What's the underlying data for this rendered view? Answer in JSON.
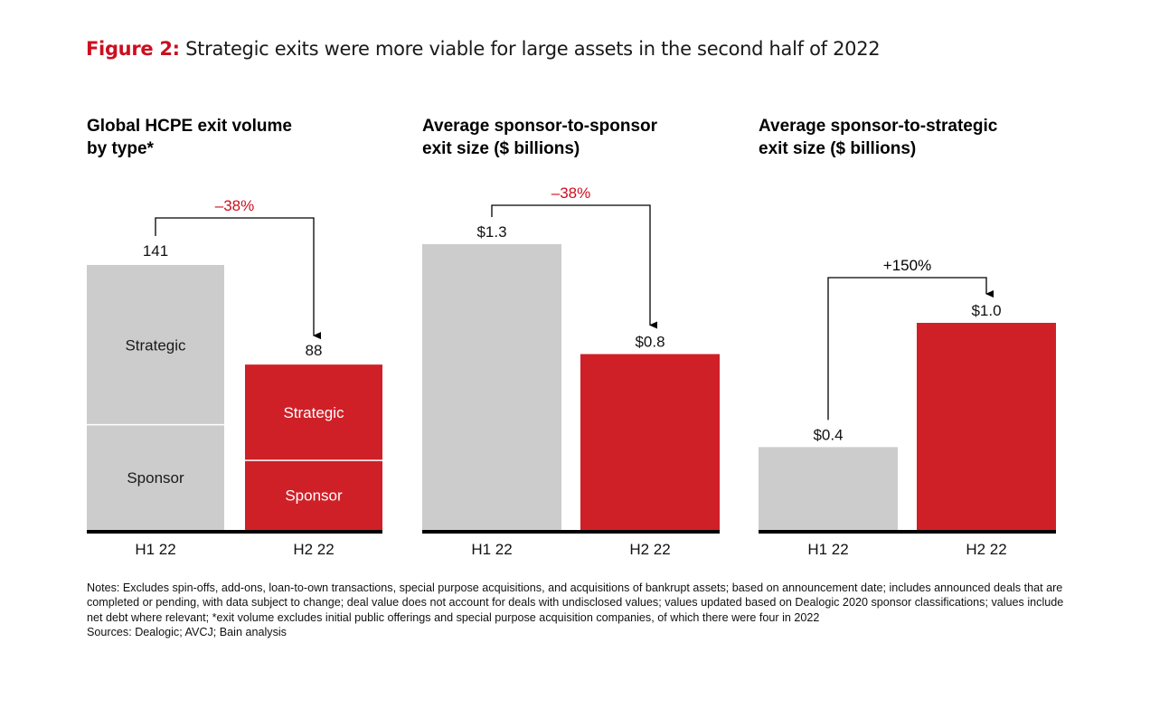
{
  "figure": {
    "label": "Figure 2:",
    "title": "Strategic exits were more viable for large assets in the second half of 2022"
  },
  "colors": {
    "accent": "#cc0f1f",
    "bar_h1": "#cccccc",
    "bar_h2": "#cf2028",
    "axis": "#000000",
    "annotation_negative": "#cc0f1f",
    "annotation_positive": "#000000"
  },
  "chart_data": [
    {
      "type": "bar",
      "stacked": true,
      "title": "Global HCPE exit volume\nby type*",
      "xlabel": "",
      "ylabel": "",
      "grid": false,
      "categories": [
        "H1 22",
        "H2 22"
      ],
      "totals": [
        141,
        88
      ],
      "total_labels": [
        "141",
        "88"
      ],
      "series": [
        {
          "name": "Sponsor",
          "values": [
            56,
            37
          ]
        },
        {
          "name": "Strategic",
          "values": [
            85,
            51
          ]
        }
      ],
      "annotation": {
        "text": "–38%",
        "from": "H1 22",
        "to": "H2 22",
        "tone": "negative"
      },
      "ylim": [
        0,
        141
      ]
    },
    {
      "type": "bar",
      "title": "Average sponsor-to-sponsor\nexit size ($ billions)",
      "xlabel": "",
      "ylabel": "$ billions",
      "grid": false,
      "categories": [
        "H1 22",
        "H2 22"
      ],
      "values": [
        1.3,
        0.8
      ],
      "value_labels": [
        "$1.3",
        "$0.8"
      ],
      "annotation": {
        "text": "–38%",
        "from": "H1 22",
        "to": "H2 22",
        "tone": "negative"
      },
      "ylim": [
        0,
        1.3
      ]
    },
    {
      "type": "bar",
      "title": "Average sponsor-to-strategic\nexit size ($ billions)",
      "xlabel": "",
      "ylabel": "$ billions",
      "grid": false,
      "categories": [
        "H1 22",
        "H2 22"
      ],
      "values": [
        0.4,
        1.0
      ],
      "value_labels": [
        "$0.4",
        "$1.0"
      ],
      "annotation": {
        "text": "+150%",
        "from": "H1 22",
        "to": "H2 22",
        "tone": "positive"
      },
      "ylim": [
        0,
        1.0
      ]
    }
  ],
  "notes": {
    "text": "Notes: Excludes spin-offs, add-ons, loan-to-own transactions, special purpose acquisitions, and acquisitions of bankrupt assets; based on announcement date; includes announced deals that are completed or pending, with data subject to change; deal value does not account for deals with undisclosed values; values updated based on Dealogic 2020 sponsor classifications; values include net debt where relevant; *exit volume excludes initial public offerings and special purpose acquisition companies, of which there were four in 2022",
    "sources": "Sources: Dealogic; AVCJ; Bain analysis"
  }
}
